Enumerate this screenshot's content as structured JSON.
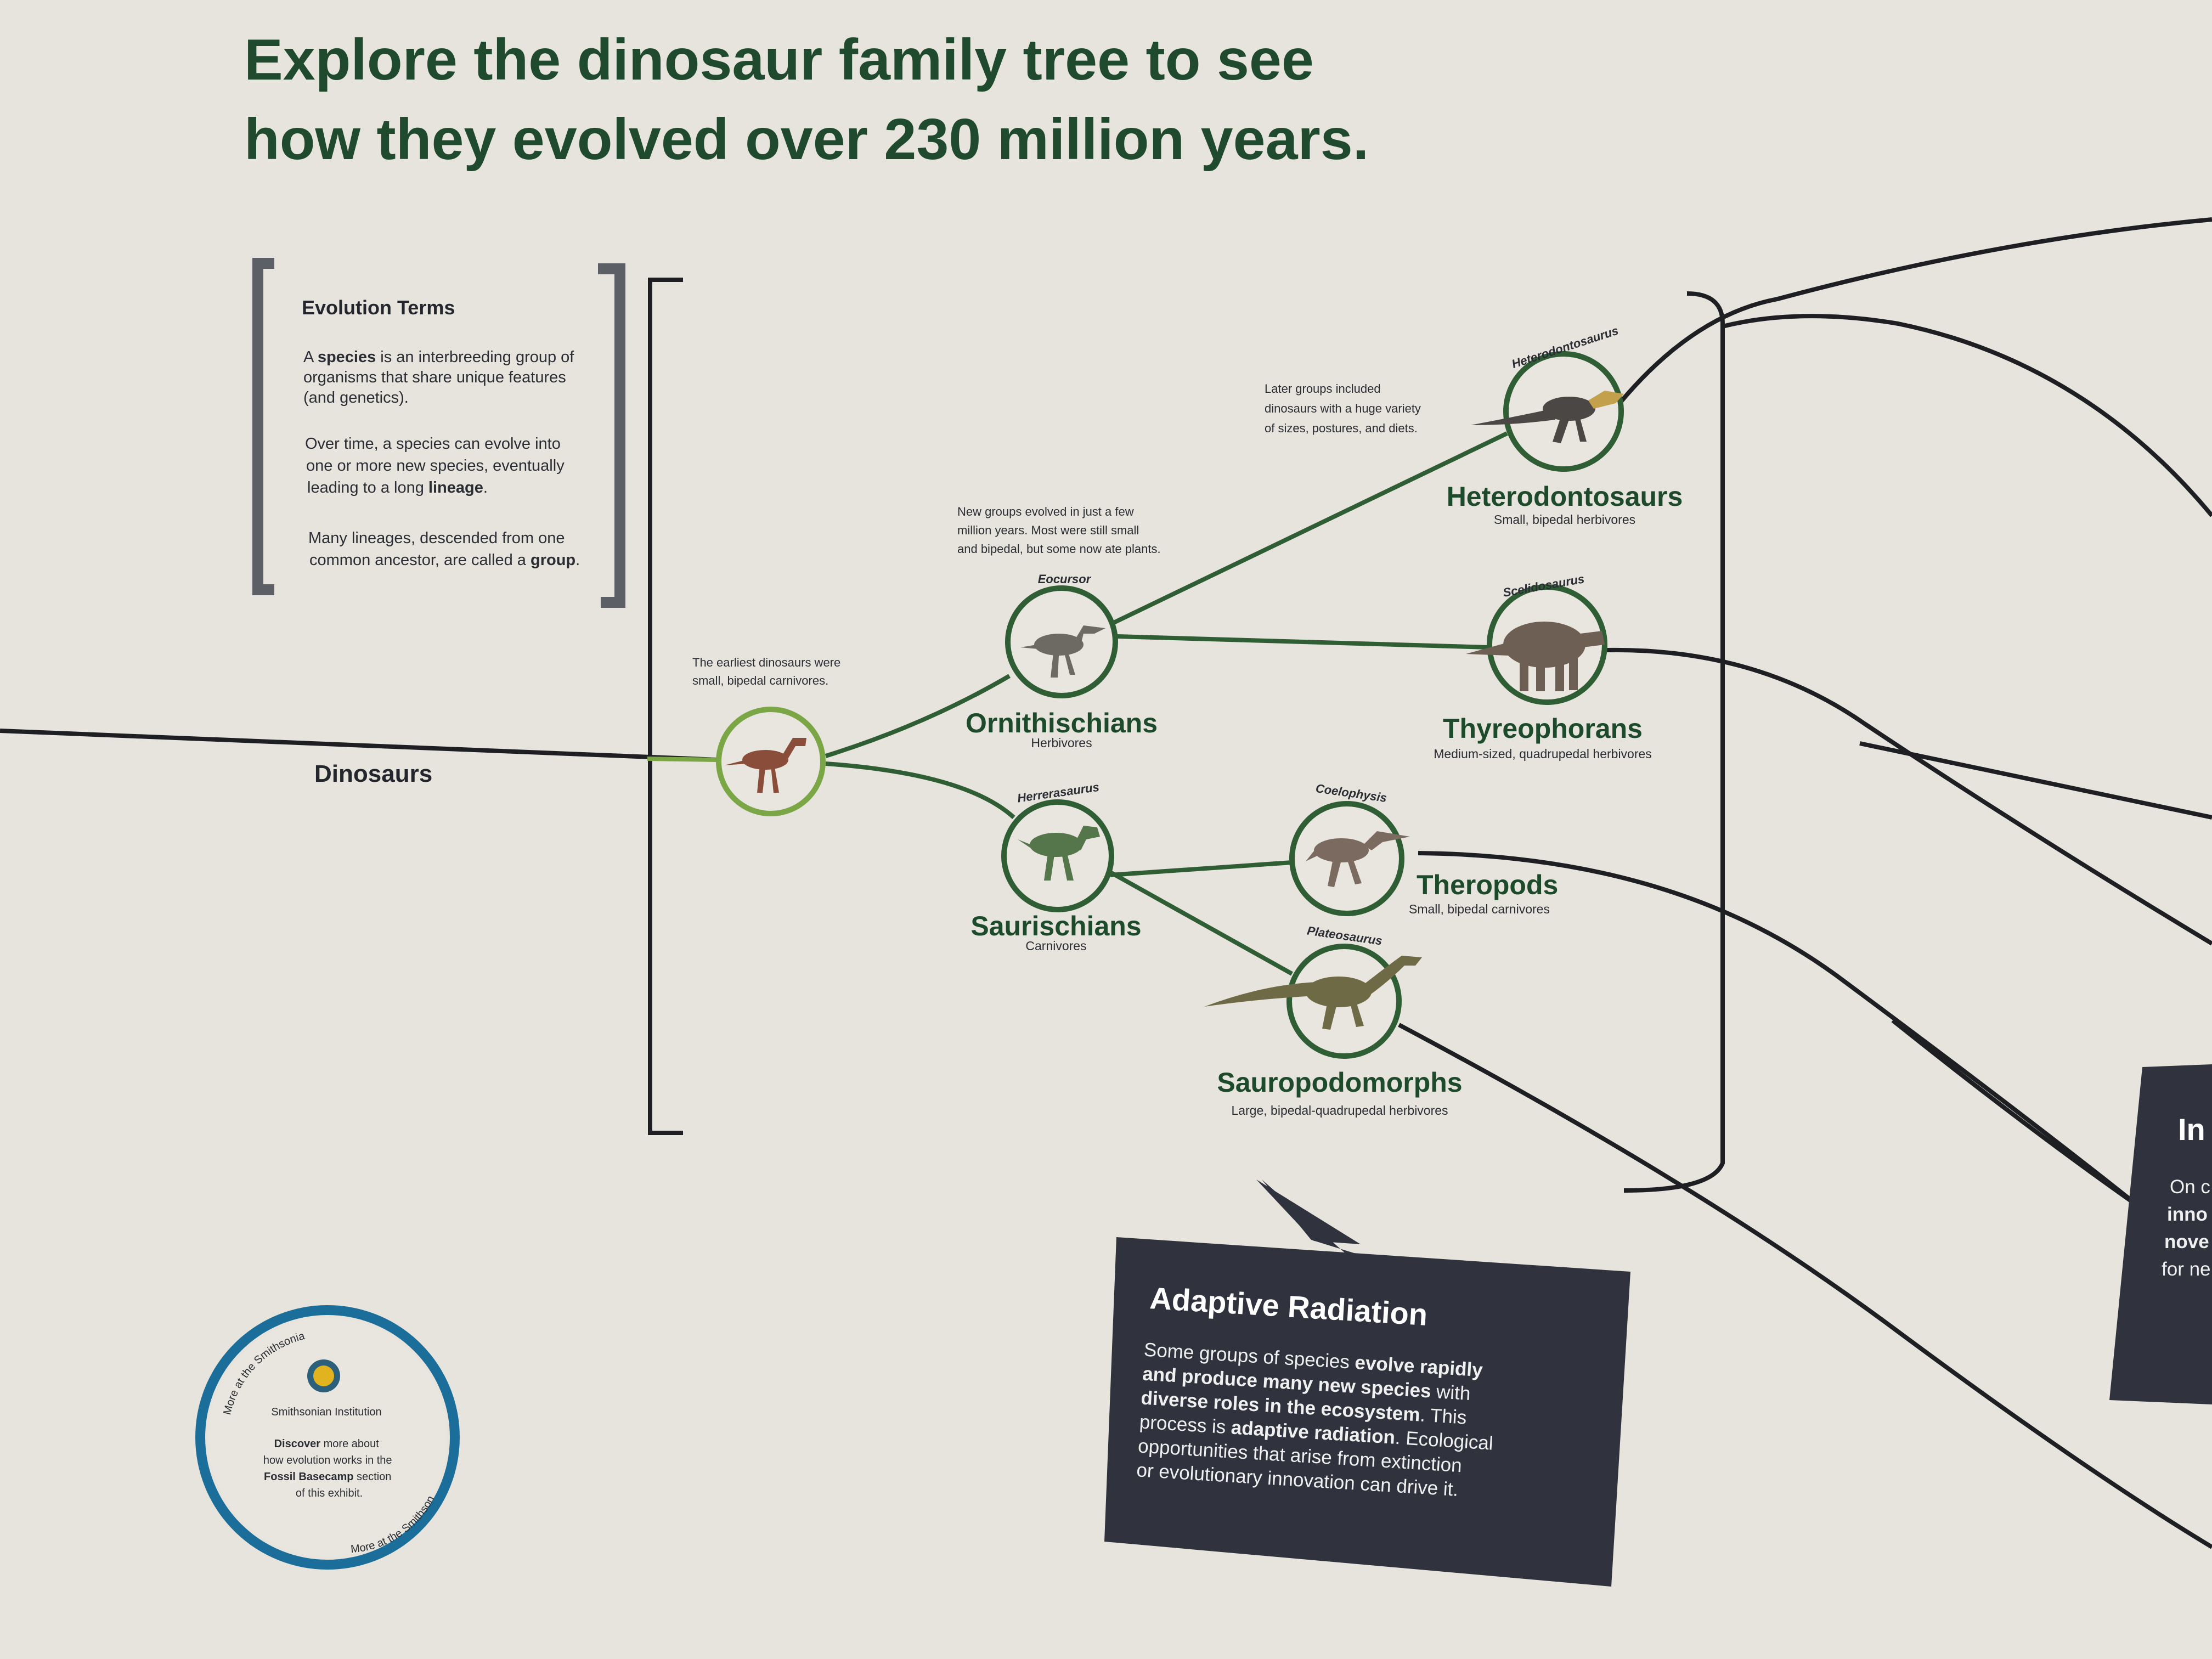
{
  "title": {
    "line1": "Explore the dinosaur family tree to see",
    "line2": "how they evolved over 230 million years."
  },
  "evolution_terms": {
    "heading": "Evolution Terms",
    "p1": {
      "l1_a": "A ",
      "l1_b": "species",
      "l1_c": " is an interbreeding group of",
      "l2": "organisms that share unique features",
      "l3": "(and genetics)."
    },
    "p2": {
      "l1": "Over time, a species can evolve into",
      "l2": "one or more new species, eventually",
      "l3_a": "leading to a long ",
      "l3_b": "lineage",
      "l3_c": "."
    },
    "p3": {
      "l1": "Many lineages, descended from one",
      "l2_a": "common ancestor, are called a ",
      "l2_b": "group",
      "l2_c": "."
    }
  },
  "dinosaurs_label": "Dinosaurs",
  "notes": {
    "earliest": [
      "The earliest dinosaurs were",
      "small, bipedal carnivores."
    ],
    "new_groups": [
      "New groups evolved in just a few",
      "million years. Most were still small",
      "and bipedal, but some now ate plants."
    ],
    "later_groups": [
      "Later groups included",
      "dinosaurs with a huge variety",
      "of sizes, postures, and diets."
    ]
  },
  "groups": {
    "ornithischians": {
      "genus": "Eocursor",
      "name": "Ornithischians",
      "sub": "Herbivores"
    },
    "saurischians": {
      "genus": "Herrerasaurus",
      "name": "Saurischians",
      "sub": "Carnivores"
    },
    "heterodontosaurs": {
      "genus": "Heterodontosaurus",
      "name": "Heterodontosaurs",
      "sub": "Small, bipedal herbivores"
    },
    "thyreophorans": {
      "genus": "Scelidosaurus",
      "name": "Thyreophorans",
      "sub": "Medium-sized, quadrupedal herbivores"
    },
    "theropods": {
      "genus": "Coelophysis",
      "name": "Theropods",
      "sub": "Small, bipedal carnivores"
    },
    "sauropodomorphs": {
      "genus": "Plateosaurus",
      "name": "Sauropodomorphs",
      "sub": "Large, bipedal-quadrupedal herbivores"
    }
  },
  "adaptive_radiation": {
    "heading": "Adaptive Radiation",
    "l1_a": "Some groups of species ",
    "l1_b": "evolve rapidly",
    "l2_b": "and produce many new species",
    "l2_c": " with",
    "l3_b": "diverse roles in the ecosystem",
    "l3_c": ". This",
    "l4_a": "process is ",
    "l4_b": "adaptive radiation",
    "l4_c": ". Ecological",
    "l5": "opportunities that arise from extinction",
    "l6": "or evolutionary innovation can drive it."
  },
  "partial_panel": {
    "heading": "In",
    "l1": "On c",
    "l2": "inno",
    "l3": "nove",
    "l4": "for ne"
  },
  "smithsonian": {
    "arc_top": "More at the Smithsonian!",
    "arc_bottom": "More at the Smithsonian!",
    "name": "Smithsonian Institution",
    "l1_b": "Discover",
    "l1_c": " more about",
    "l2": "how evolution works in the",
    "l3_b": "Fossil Basecamp",
    "l3_c": " section",
    "l4": "of this exhibit."
  },
  "colors": {
    "background": "#e6e4dc",
    "title_green": "#1f4a2e",
    "node_green": "#2f5d34",
    "root_green": "#7aa646",
    "line": "#1d1f23",
    "callout_bg": "#30323e",
    "bracket_gray": "#5c5f66",
    "seal_blue": "#1b6e9a"
  }
}
